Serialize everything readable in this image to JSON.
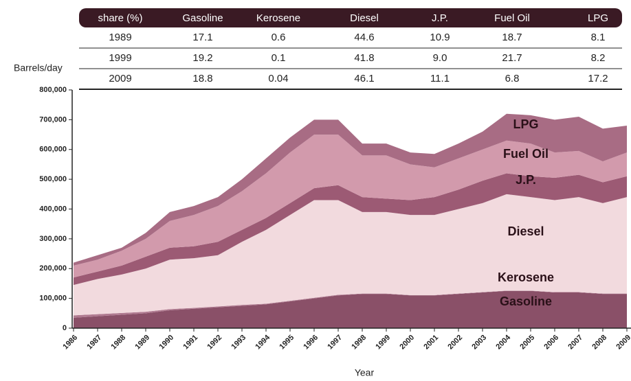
{
  "table": {
    "header": [
      "share (%)",
      "Gasoline",
      "Kerosene",
      "Diesel",
      "J.P.",
      "Fuel Oil",
      "LPG"
    ],
    "rows": [
      [
        "1989",
        "17.1",
        "0.6",
        "44.6",
        "10.9",
        "18.7",
        "8.1"
      ],
      [
        "1999",
        "19.2",
        "0.1",
        "41.8",
        "9.0",
        "21.7",
        "8.2"
      ],
      [
        "2009",
        "18.8",
        "0.04",
        "46.1",
        "11.1",
        "6.8",
        "17.2"
      ]
    ]
  },
  "chart_data": {
    "type": "stacked_area",
    "ylabel": "Barrels/day",
    "xlabel": "Year",
    "x": [
      1986,
      1987,
      1988,
      1989,
      1990,
      1991,
      1992,
      1993,
      1994,
      1995,
      1996,
      1997,
      1998,
      1999,
      2000,
      2001,
      2002,
      2003,
      2004,
      2005,
      2006,
      2007,
      2008,
      2009
    ],
    "xlim": [
      1986,
      2009
    ],
    "xticks": [
      1986,
      1987,
      1988,
      1989,
      1990,
      1991,
      1992,
      1993,
      1994,
      1995,
      1996,
      1997,
      1998,
      1999,
      2000,
      2001,
      2002,
      2003,
      2004,
      2005,
      2006,
      2007,
      2008,
      2009
    ],
    "ylim": [
      0,
      800000
    ],
    "yticks": [
      {
        "value": 0,
        "label": "0"
      },
      {
        "value": 100000,
        "label": "100,000"
      },
      {
        "value": 200000,
        "label": "200,000"
      },
      {
        "value": 300000,
        "label": "300,000"
      },
      {
        "value": 400000,
        "label": "400,000"
      },
      {
        "value": 500000,
        "label": "500,000"
      },
      {
        "value": 600000,
        "label": "600,000"
      },
      {
        "value": 700000,
        "label": "700,000"
      },
      {
        "value": 800000,
        "label": "800,000"
      }
    ],
    "series": [
      {
        "name": "Gasoline",
        "color": "#8a5068",
        "values": [
          35000,
          40000,
          45000,
          50000,
          60000,
          65000,
          70000,
          75000,
          80000,
          90000,
          100000,
          110000,
          115000,
          115000,
          110000,
          110000,
          115000,
          120000,
          125000,
          125000,
          120000,
          120000,
          115000,
          115000
        ]
      },
      {
        "name": "Kerosene",
        "color": "#b07a90",
        "values": [
          8000,
          7000,
          6000,
          5000,
          4000,
          3000,
          3000,
          3000,
          2000,
          2000,
          2000,
          2000,
          1000,
          1000,
          1000,
          1000,
          1000,
          1000,
          1000,
          1000,
          1000,
          1000,
          1000,
          1000
        ]
      },
      {
        "name": "Diesel",
        "color": "#f2dade",
        "values": [
          102000,
          118000,
          129000,
          145000,
          166000,
          167000,
          172000,
          212000,
          248000,
          288000,
          328000,
          318000,
          274000,
          274000,
          269000,
          269000,
          284000,
          299000,
          324000,
          314000,
          309000,
          319000,
          304000,
          324000
        ]
      },
      {
        "name": "J.P.",
        "color": "#9c5a74",
        "values": [
          25000,
          25000,
          30000,
          40000,
          40000,
          40000,
          45000,
          40000,
          40000,
          40000,
          40000,
          50000,
          50000,
          45000,
          50000,
          60000,
          65000,
          75000,
          70000,
          70000,
          75000,
          75000,
          70000,
          70000
        ]
      },
      {
        "name": "Fuel Oil",
        "color": "#d29aac",
        "values": [
          40000,
          40000,
          50000,
          60000,
          90000,
          105000,
          120000,
          130000,
          150000,
          170000,
          180000,
          170000,
          140000,
          145000,
          120000,
          100000,
          105000,
          105000,
          110000,
          110000,
          85000,
          80000,
          70000,
          80000
        ]
      },
      {
        "name": "LPG",
        "color": "#a86c84",
        "values": [
          10000,
          15000,
          10000,
          20000,
          30000,
          30000,
          30000,
          40000,
          50000,
          50000,
          50000,
          50000,
          40000,
          40000,
          40000,
          45000,
          50000,
          60000,
          90000,
          95000,
          110000,
          115000,
          110000,
          90000
        ]
      }
    ]
  }
}
